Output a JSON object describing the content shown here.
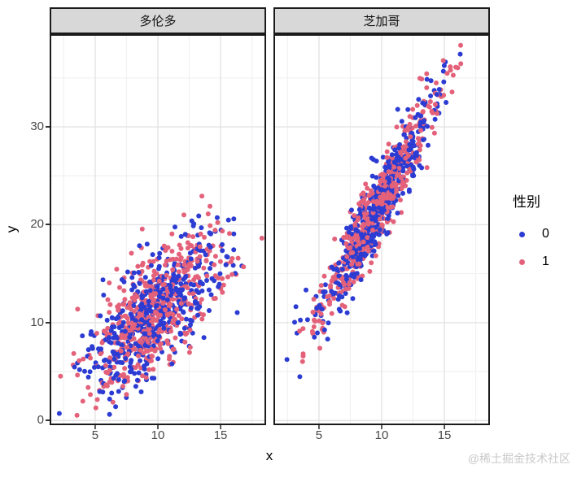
{
  "axes": {
    "x_title": "x",
    "y_title": "y"
  },
  "legend": {
    "title": "性别",
    "items": [
      {
        "label": "0",
        "color": "#2c3cd3"
      },
      {
        "label": "1",
        "color": "#e4617a"
      }
    ]
  },
  "watermark": {
    "text": "@稀土掘金技术社区"
  },
  "colors": {
    "strip_bg": "#d8d8d8",
    "panel_bg": "#ffffff",
    "panel_border": "#1b1b1b",
    "grid_major": "#e3e3e3",
    "grid_minor": "#f1f1f1",
    "tick_mark": "#333333",
    "tick_label": "#4a4a4a",
    "title_text": "#000000",
    "watermark": "#c9c9c9",
    "group0": "#2c3cd3",
    "group1": "#e4617a"
  },
  "chart_data": {
    "type": "scatter",
    "title": "",
    "xlabel": "x",
    "ylabel": "y",
    "legend_title": "性别",
    "facet_labels": [
      "多伦多",
      "芝加哥"
    ],
    "x_range": [
      1.5,
      18.5
    ],
    "y_range": [
      -0.3,
      39.3
    ],
    "x_ticks": [
      5,
      10,
      15
    ],
    "x_minor_gridlines": [
      2.5,
      7.5,
      12.5,
      17.5
    ],
    "y_ticks": [
      0,
      10,
      20,
      30
    ],
    "y_minor_gridlines": [
      5,
      15,
      25,
      35
    ],
    "point_radius": 3,
    "facets": [
      {
        "label": "多伦多",
        "trend": "moderate positive correlation, y ≈ 1.0·x + 1.3, x ∈ [2.5,17.5], y ∈ [1.5,21]",
        "series": [
          {
            "name": "0",
            "color": "#2c3cd3",
            "n": 500,
            "x_mean": 9.7,
            "x_sd": 2.7,
            "slope": 1.0,
            "intercept": 1.3,
            "resid_sd": 2.9,
            "seed": 1137
          },
          {
            "name": "1",
            "color": "#e4617a",
            "n": 500,
            "x_mean": 9.7,
            "x_sd": 2.7,
            "slope": 1.0,
            "intercept": 1.3,
            "resid_sd": 2.9,
            "seed": 2241
          }
        ]
      },
      {
        "label": "芝加哥",
        "trend": "strong positive correlation, y ≈ 2.3·x − 0.5, x ∈ [3.5,17], y ∈ [3.5,37.5]",
        "series": [
          {
            "name": "0",
            "color": "#2c3cd3",
            "n": 500,
            "x_mean": 9.7,
            "x_sd": 2.4,
            "slope": 2.3,
            "intercept": -0.5,
            "resid_sd": 1.9,
            "seed": 3349
          },
          {
            "name": "1",
            "color": "#e4617a",
            "n": 500,
            "x_mean": 9.7,
            "x_sd": 2.4,
            "slope": 2.3,
            "intercept": -0.5,
            "resid_sd": 1.9,
            "seed": 4457
          }
        ]
      }
    ]
  }
}
